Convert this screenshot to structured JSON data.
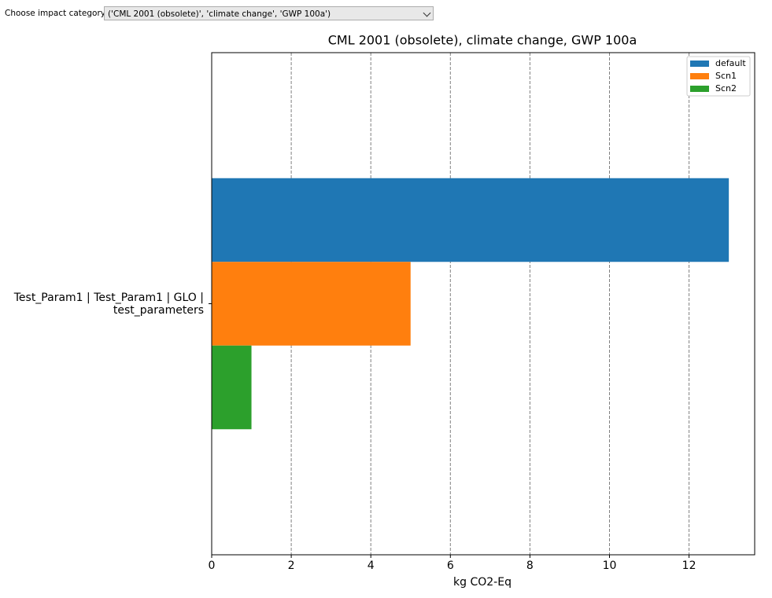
{
  "ui": {
    "dropdown_label": "Choose impact category:",
    "dropdown_value": "('CML 2001 (obsolete)', 'climate change', 'GWP 100a')"
  },
  "chart_data": {
    "type": "barh",
    "title": "CML 2001 (obsolete), climate change, GWP 100a",
    "x_label": "kg CO2-Eq",
    "categories": [
      "Test_Param1 | Test_Param1 | GLO | test_parameters"
    ],
    "series": [
      {
        "name": "default",
        "color": "#1f77b4",
        "values": [
          13
        ]
      },
      {
        "name": "Scn1",
        "color": "#ff7f0e",
        "values": [
          5
        ]
      },
      {
        "name": "Scn2",
        "color": "#2ca02c",
        "values": [
          1
        ]
      }
    ],
    "xlim": [
      0,
      13.65
    ],
    "xticks": [
      0,
      2,
      4,
      6,
      8,
      10,
      12
    ],
    "grid": true,
    "legend": "upper right"
  }
}
